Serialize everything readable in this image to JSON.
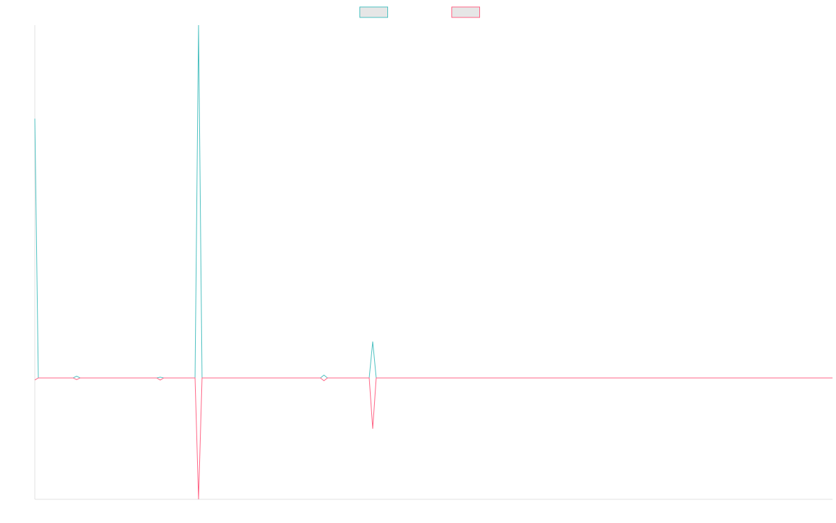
{
  "chart_data": {
    "type": "line",
    "x": [
      0,
      1,
      11,
      12,
      13,
      35,
      36,
      37,
      46,
      47,
      48,
      82,
      83,
      84,
      96,
      97,
      98,
      229
    ],
    "xlim": [
      0,
      229
    ],
    "ylim": [
      -34.4,
      100
    ],
    "legend": "top",
    "series": [
      {
        "color": "#4bc0c0",
        "values": [
          73.5,
          0,
          0,
          0.5,
          0,
          0,
          0.2,
          0,
          0,
          100,
          0,
          0,
          0.8,
          0,
          0,
          10.3,
          0,
          0
        ]
      },
      {
        "color": "#ff6384",
        "values": [
          -0.6,
          0,
          0,
          -0.5,
          0,
          0,
          -0.6,
          0,
          0,
          -34.4,
          0,
          0,
          -0.8,
          0,
          0,
          -14.4,
          0,
          0
        ]
      }
    ]
  }
}
